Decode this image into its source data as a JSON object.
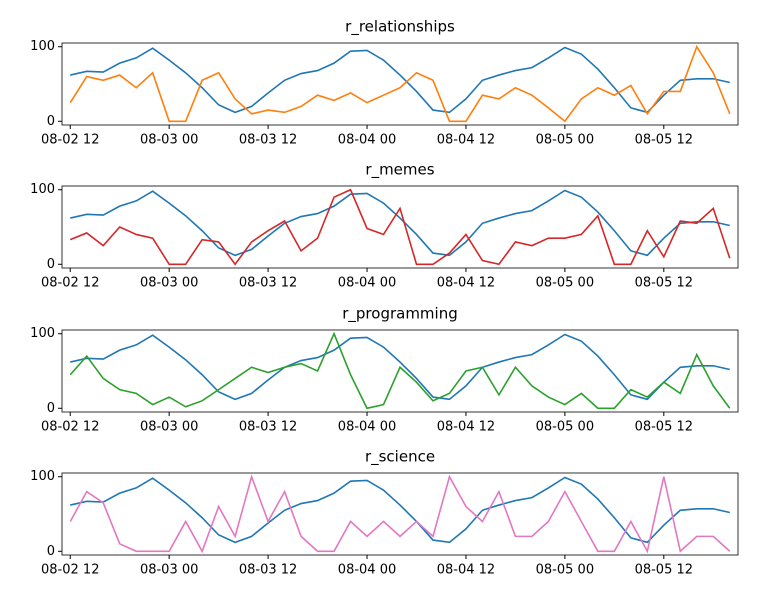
{
  "chart_data": [
    {
      "type": "line",
      "title": "r_relationships",
      "x": [
        "08-02 12",
        "08-02 14",
        "08-02 16",
        "08-02 18",
        "08-02 20",
        "08-02 22",
        "08-03 00",
        "08-03 02",
        "08-03 04",
        "08-03 06",
        "08-03 08",
        "08-03 10",
        "08-03 12",
        "08-03 14",
        "08-03 16",
        "08-03 18",
        "08-03 20",
        "08-03 22",
        "08-04 00",
        "08-04 02",
        "08-04 04",
        "08-04 06",
        "08-04 08",
        "08-04 10",
        "08-04 12",
        "08-04 14",
        "08-04 16",
        "08-04 18",
        "08-04 20",
        "08-04 22",
        "08-05 00",
        "08-05 02",
        "08-05 04",
        "08-05 06",
        "08-05 08",
        "08-05 10",
        "08-05 12",
        "08-05 14",
        "08-05 16",
        "08-05 18",
        "08-05 20"
      ],
      "series": [
        {
          "color": "#1f77b4",
          "values": [
            62,
            67,
            66,
            78,
            85,
            98,
            82,
            65,
            45,
            22,
            12,
            20,
            38,
            55,
            64,
            68,
            78,
            94,
            95,
            82,
            62,
            40,
            15,
            12,
            30,
            55,
            62,
            68,
            72,
            85,
            99,
            90,
            70,
            45,
            18,
            12,
            35,
            55,
            57,
            57,
            52
          ]
        },
        {
          "color": "#ff7f0e",
          "values": [
            25,
            60,
            55,
            62,
            45,
            65,
            0,
            0,
            55,
            65,
            30,
            10,
            15,
            12,
            20,
            35,
            28,
            38,
            25,
            35,
            45,
            65,
            55,
            0,
            0,
            35,
            30,
            45,
            35,
            18,
            0,
            30,
            45,
            35,
            48,
            10,
            40,
            40,
            100,
            65,
            10
          ]
        }
      ],
      "xlim": [
        "08-02 11",
        "08-05 21"
      ],
      "xticks": [
        "08-02 12",
        "08-03 00",
        "08-03 12",
        "08-04 00",
        "08-04 12",
        "08-05 00",
        "08-05 12"
      ],
      "ylim": [
        -5,
        105
      ],
      "yticks": [
        0,
        100
      ]
    },
    {
      "type": "line",
      "title": "r_memes",
      "x": [
        "08-02 12",
        "08-02 14",
        "08-02 16",
        "08-02 18",
        "08-02 20",
        "08-02 22",
        "08-03 00",
        "08-03 02",
        "08-03 04",
        "08-03 06",
        "08-03 08",
        "08-03 10",
        "08-03 12",
        "08-03 14",
        "08-03 16",
        "08-03 18",
        "08-03 20",
        "08-03 22",
        "08-04 00",
        "08-04 02",
        "08-04 04",
        "08-04 06",
        "08-04 08",
        "08-04 10",
        "08-04 12",
        "08-04 14",
        "08-04 16",
        "08-04 18",
        "08-04 20",
        "08-04 22",
        "08-05 00",
        "08-05 02",
        "08-05 04",
        "08-05 06",
        "08-05 08",
        "08-05 10",
        "08-05 12",
        "08-05 14",
        "08-05 16",
        "08-05 18",
        "08-05 20"
      ],
      "series": [
        {
          "color": "#1f77b4",
          "values": [
            62,
            67,
            66,
            78,
            85,
            98,
            82,
            65,
            45,
            22,
            12,
            20,
            38,
            55,
            64,
            68,
            78,
            94,
            95,
            82,
            62,
            40,
            15,
            12,
            30,
            55,
            62,
            68,
            72,
            85,
            99,
            90,
            70,
            45,
            18,
            12,
            35,
            55,
            57,
            57,
            52
          ]
        },
        {
          "color": "#d62728",
          "values": [
            33,
            42,
            25,
            50,
            40,
            35,
            0,
            0,
            33,
            30,
            0,
            30,
            45,
            58,
            18,
            35,
            90,
            100,
            48,
            40,
            75,
            0,
            0,
            15,
            40,
            5,
            0,
            30,
            25,
            35,
            35,
            40,
            65,
            0,
            0,
            45,
            10,
            58,
            55,
            75,
            8
          ]
        }
      ],
      "xlim": [
        "08-02 11",
        "08-05 21"
      ],
      "xticks": [
        "08-02 12",
        "08-03 00",
        "08-03 12",
        "08-04 00",
        "08-04 12",
        "08-05 00",
        "08-05 12"
      ],
      "ylim": [
        -5,
        105
      ],
      "yticks": [
        0,
        100
      ]
    },
    {
      "type": "line",
      "title": "r_programming",
      "x": [
        "08-02 12",
        "08-02 14",
        "08-02 16",
        "08-02 18",
        "08-02 20",
        "08-02 22",
        "08-03 00",
        "08-03 02",
        "08-03 04",
        "08-03 06",
        "08-03 08",
        "08-03 10",
        "08-03 12",
        "08-03 14",
        "08-03 16",
        "08-03 18",
        "08-03 20",
        "08-03 22",
        "08-04 00",
        "08-04 02",
        "08-04 04",
        "08-04 06",
        "08-04 08",
        "08-04 10",
        "08-04 12",
        "08-04 14",
        "08-04 16",
        "08-04 18",
        "08-04 20",
        "08-04 22",
        "08-05 00",
        "08-05 02",
        "08-05 04",
        "08-05 06",
        "08-05 08",
        "08-05 10",
        "08-05 12",
        "08-05 14",
        "08-05 16",
        "08-05 18",
        "08-05 20"
      ],
      "series": [
        {
          "color": "#1f77b4",
          "values": [
            62,
            67,
            66,
            78,
            85,
            98,
            82,
            65,
            45,
            22,
            12,
            20,
            38,
            55,
            64,
            68,
            78,
            94,
            95,
            82,
            62,
            40,
            15,
            12,
            30,
            55,
            62,
            68,
            72,
            85,
            99,
            90,
            70,
            45,
            18,
            12,
            35,
            55,
            57,
            57,
            52
          ]
        },
        {
          "color": "#2ca02c",
          "values": [
            45,
            70,
            40,
            25,
            20,
            5,
            15,
            2,
            10,
            25,
            40,
            55,
            48,
            55,
            60,
            50,
            100,
            45,
            0,
            5,
            55,
            35,
            10,
            20,
            50,
            55,
            18,
            55,
            30,
            15,
            5,
            20,
            0,
            0,
            25,
            15,
            35,
            20,
            72,
            30,
            0
          ]
        }
      ],
      "xlim": [
        "08-02 11",
        "08-05 21"
      ],
      "xticks": [
        "08-02 12",
        "08-03 00",
        "08-03 12",
        "08-04 00",
        "08-04 12",
        "08-05 00",
        "08-05 12"
      ],
      "ylim": [
        -5,
        105
      ],
      "yticks": [
        0,
        100
      ]
    },
    {
      "type": "line",
      "title": "r_science",
      "x": [
        "08-02 12",
        "08-02 14",
        "08-02 16",
        "08-02 18",
        "08-02 20",
        "08-02 22",
        "08-03 00",
        "08-03 02",
        "08-03 04",
        "08-03 06",
        "08-03 08",
        "08-03 10",
        "08-03 12",
        "08-03 14",
        "08-03 16",
        "08-03 18",
        "08-03 20",
        "08-03 22",
        "08-04 00",
        "08-04 02",
        "08-04 04",
        "08-04 06",
        "08-04 08",
        "08-04 10",
        "08-04 12",
        "08-04 14",
        "08-04 16",
        "08-04 18",
        "08-04 20",
        "08-04 22",
        "08-05 00",
        "08-05 02",
        "08-05 04",
        "08-05 06",
        "08-05 08",
        "08-05 10",
        "08-05 12",
        "08-05 14",
        "08-05 16",
        "08-05 18",
        "08-05 20"
      ],
      "series": [
        {
          "color": "#1f77b4",
          "values": [
            62,
            67,
            66,
            78,
            85,
            98,
            82,
            65,
            45,
            22,
            12,
            20,
            38,
            55,
            64,
            68,
            78,
            94,
            95,
            82,
            62,
            40,
            15,
            12,
            30,
            55,
            62,
            68,
            72,
            85,
            99,
            90,
            70,
            45,
            18,
            12,
            35,
            55,
            57,
            57,
            52
          ]
        },
        {
          "color": "#e377c2",
          "values": [
            40,
            80,
            65,
            10,
            0,
            0,
            0,
            40,
            0,
            60,
            20,
            100,
            40,
            80,
            20,
            0,
            0,
            40,
            20,
            40,
            20,
            40,
            20,
            100,
            60,
            40,
            80,
            20,
            20,
            40,
            80,
            40,
            0,
            0,
            40,
            0,
            100,
            0,
            20,
            20,
            0
          ]
        }
      ],
      "xlim": [
        "08-02 11",
        "08-05 21"
      ],
      "xticks": [
        "08-02 12",
        "08-03 00",
        "08-03 12",
        "08-04 00",
        "08-04 12",
        "08-05 00",
        "08-05 12"
      ],
      "ylim": [
        -5,
        105
      ],
      "yticks": [
        0,
        100
      ]
    }
  ]
}
